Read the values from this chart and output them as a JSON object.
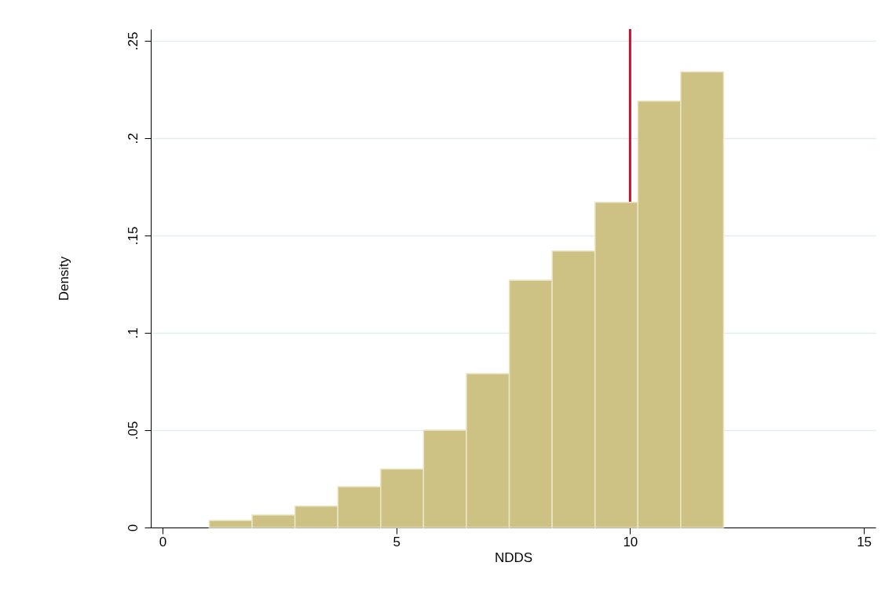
{
  "chart_data": {
    "type": "histogram",
    "xlabel": "NDDS",
    "ylabel": "Density",
    "bins": [
      1,
      1.9167,
      2.8333,
      3.75,
      4.6667,
      5.5833,
      6.5,
      7.4167,
      8.3333,
      9.25,
      10.1667,
      11.0833,
      12
    ],
    "values": [
      0.0036,
      0.0065,
      0.011,
      0.021,
      0.03,
      0.05,
      0.079,
      0.127,
      0.142,
      0.167,
      0.219,
      0.234
    ],
    "color": "#cdc283",
    "xlim": [
      -0.25,
      15.25
    ],
    "xticks": [
      0,
      5,
      10,
      15
    ],
    "ylim": [
      0,
      0.256
    ],
    "yticks": [
      0,
      {
        "value": 0.05,
        "label": ".05"
      },
      {
        "value": 0.1,
        "label": ".1"
      },
      {
        "value": 0.15,
        "label": ".15"
      },
      {
        "value": 0.2,
        "label": ".2"
      },
      {
        "value": 0.25,
        "label": ".25"
      }
    ],
    "grid": "y",
    "ref_lines": [
      {
        "axis": "x",
        "value": 10,
        "color": "#c8102e"
      }
    ]
  }
}
